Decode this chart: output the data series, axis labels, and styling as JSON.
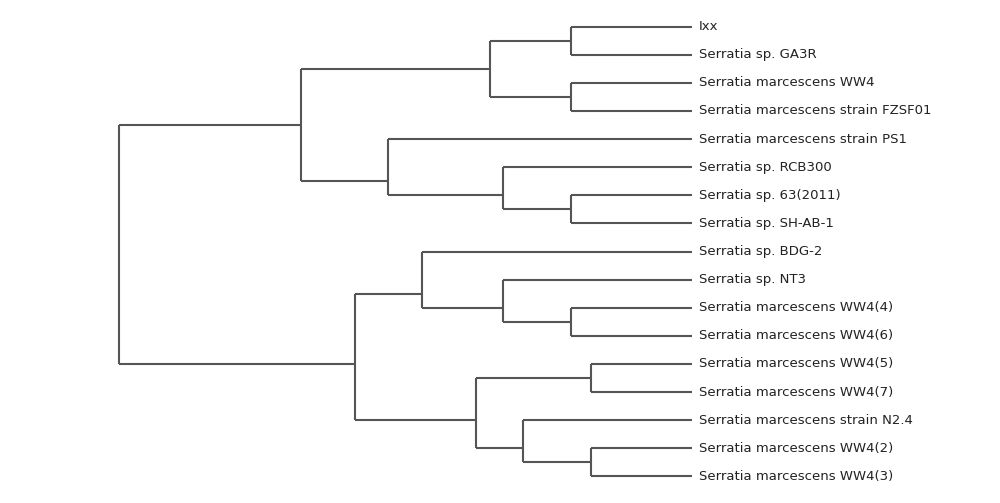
{
  "leaves": [
    "Ixx",
    "Serratia sp. GA3R",
    "Serratia marcescens WW4",
    "Serratia marcescens strain FZSF01",
    "Serratia marcescens strain PS1",
    "Serratia sp. RCB300",
    "Serratia sp. 63(2011)",
    "Serratia sp. SH-AB-1",
    "Serratia sp. BDG-2",
    "Serratia sp. NT3",
    "Serratia marcescens WW4(4)",
    "Serratia marcescens WW4(6)",
    "Serratia marcescens WW4(5)",
    "Serratia marcescens WW4(7)",
    "Serratia marcescens strain N2.4",
    "Serratia marcescens WW4(2)",
    "Serratia marcescens WW4(3)"
  ],
  "background_color": "#ffffff",
  "line_color": "#555555",
  "line_width": 1.5,
  "font_size": 9.5,
  "text_color": "#222222"
}
